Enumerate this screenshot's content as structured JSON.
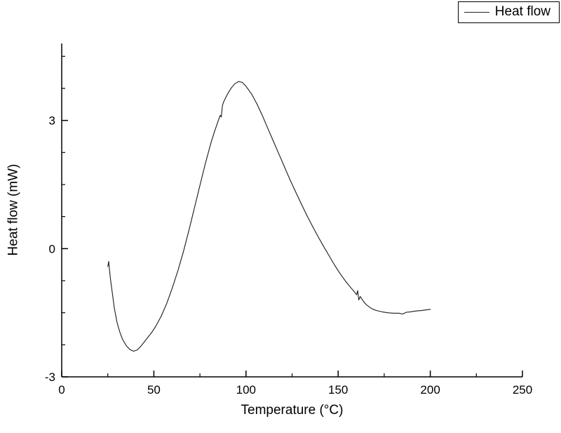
{
  "legend": {
    "label": "Heat flow"
  },
  "chart_data": {
    "type": "line",
    "title": "",
    "xlabel": "Temperature (°C)",
    "ylabel": "Heat flow (mW)",
    "xlim": [
      0,
      250
    ],
    "ylim": [
      -3,
      4.8
    ],
    "x_major_ticks": [
      0,
      50,
      100,
      150,
      200,
      250
    ],
    "x_minor_ticks": [
      25,
      75,
      125,
      175,
      225
    ],
    "y_major_ticks": [
      -3,
      0,
      3
    ],
    "y_minor_ticks": [
      -2.25,
      -1.5,
      -0.75,
      0.75,
      1.5,
      2.25,
      3.75,
      4.5
    ],
    "grid": false,
    "legend_position": "top-right",
    "line_color": "#1a1a1a",
    "series": [
      {
        "name": "Heat flow",
        "color": "#1a1a1a",
        "points": [
          [
            25,
            -0.42
          ],
          [
            25.5,
            -0.3
          ],
          [
            26,
            -0.52
          ],
          [
            26.5,
            -0.72
          ],
          [
            27.5,
            -1.05
          ],
          [
            28.5,
            -1.38
          ],
          [
            30,
            -1.72
          ],
          [
            31.5,
            -1.95
          ],
          [
            33,
            -2.12
          ],
          [
            35,
            -2.27
          ],
          [
            37,
            -2.36
          ],
          [
            39,
            -2.4
          ],
          [
            41,
            -2.37
          ],
          [
            43,
            -2.28
          ],
          [
            45,
            -2.17
          ],
          [
            47,
            -2.06
          ],
          [
            49,
            -1.95
          ],
          [
            51,
            -1.82
          ],
          [
            54,
            -1.58
          ],
          [
            57,
            -1.28
          ],
          [
            60,
            -0.92
          ],
          [
            63,
            -0.52
          ],
          [
            66,
            -0.08
          ],
          [
            69,
            0.42
          ],
          [
            72,
            0.95
          ],
          [
            75,
            1.48
          ],
          [
            78,
            2.0
          ],
          [
            81,
            2.48
          ],
          [
            83,
            2.75
          ],
          [
            85,
            3.0
          ],
          [
            86,
            3.12
          ],
          [
            86.6,
            3.08
          ],
          [
            87.2,
            3.35
          ],
          [
            88,
            3.45
          ],
          [
            90,
            3.62
          ],
          [
            92,
            3.76
          ],
          [
            94,
            3.86
          ],
          [
            96,
            3.91
          ],
          [
            98,
            3.89
          ],
          [
            100,
            3.8
          ],
          [
            103,
            3.62
          ],
          [
            106,
            3.38
          ],
          [
            109,
            3.1
          ],
          [
            112,
            2.8
          ],
          [
            115,
            2.5
          ],
          [
            118,
            2.2
          ],
          [
            121,
            1.9
          ],
          [
            124,
            1.6
          ],
          [
            127,
            1.32
          ],
          [
            130,
            1.05
          ],
          [
            133,
            0.78
          ],
          [
            136,
            0.53
          ],
          [
            139,
            0.29
          ],
          [
            142,
            0.06
          ],
          [
            145,
            -0.16
          ],
          [
            148,
            -0.38
          ],
          [
            151,
            -0.58
          ],
          [
            154,
            -0.76
          ],
          [
            157,
            -0.92
          ],
          [
            159,
            -1.02
          ],
          [
            160,
            -1.08
          ],
          [
            160.6,
            -0.98
          ],
          [
            161.2,
            -1.2
          ],
          [
            162,
            -1.12
          ],
          [
            163.5,
            -1.22
          ],
          [
            165,
            -1.3
          ],
          [
            167,
            -1.37
          ],
          [
            169,
            -1.42
          ],
          [
            171,
            -1.45
          ],
          [
            174,
            -1.48
          ],
          [
            177,
            -1.5
          ],
          [
            180,
            -1.51
          ],
          [
            183,
            -1.51
          ],
          [
            185,
            -1.53
          ],
          [
            187,
            -1.49
          ],
          [
            189,
            -1.48
          ],
          [
            192,
            -1.46
          ],
          [
            195,
            -1.45
          ],
          [
            198,
            -1.43
          ],
          [
            200,
            -1.42
          ]
        ]
      }
    ]
  }
}
